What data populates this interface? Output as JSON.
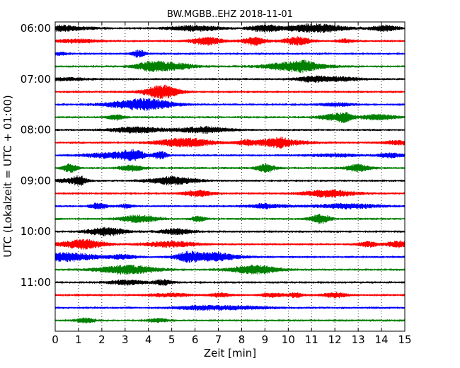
{
  "chart_data": {
    "type": "line",
    "title": "BW.MGBB..EHZ 2018-11-01",
    "xlabel": "Zeit  [min]",
    "ylabel": "UTC (Lokalzeit = UTC + 01:00)",
    "xlim": [
      0,
      15
    ],
    "x_ticks": [
      "0",
      "1",
      "2",
      "3",
      "4",
      "5",
      "6",
      "7",
      "8",
      "9",
      "10",
      "11",
      "12",
      "13",
      "14",
      "15"
    ],
    "y_ticks": [
      "06:00",
      "07:00",
      "08:00",
      "09:00",
      "10:00",
      "11:00"
    ],
    "grid": true,
    "trace_colors": [
      "#000000",
      "#ff0000",
      "#0000ff",
      "#008000"
    ],
    "series": [
      {
        "label": "06:00",
        "color": "#000000"
      },
      {
        "label": "06:15",
        "color": "#ff0000"
      },
      {
        "label": "06:30",
        "color": "#0000ff"
      },
      {
        "label": "06:45",
        "color": "#008000"
      },
      {
        "label": "07:00",
        "color": "#000000"
      },
      {
        "label": "07:15",
        "color": "#ff0000"
      },
      {
        "label": "07:30",
        "color": "#0000ff"
      },
      {
        "label": "07:45",
        "color": "#008000"
      },
      {
        "label": "08:00",
        "color": "#000000"
      },
      {
        "label": "08:15",
        "color": "#ff0000"
      },
      {
        "label": "08:30",
        "color": "#0000ff"
      },
      {
        "label": "08:45",
        "color": "#008000"
      },
      {
        "label": "09:00",
        "color": "#000000"
      },
      {
        "label": "09:15",
        "color": "#ff0000"
      },
      {
        "label": "09:30",
        "color": "#0000ff"
      },
      {
        "label": "09:45",
        "color": "#008000"
      },
      {
        "label": "10:00",
        "color": "#000000"
      },
      {
        "label": "10:15",
        "color": "#ff0000"
      },
      {
        "label": "10:30",
        "color": "#0000ff"
      },
      {
        "label": "10:45",
        "color": "#008000"
      },
      {
        "label": "11:00",
        "color": "#000000"
      },
      {
        "label": "11:15",
        "color": "#ff0000"
      },
      {
        "label": "11:30",
        "color": "#0000ff"
      },
      {
        "label": "11:45",
        "color": "#008000"
      }
    ]
  }
}
